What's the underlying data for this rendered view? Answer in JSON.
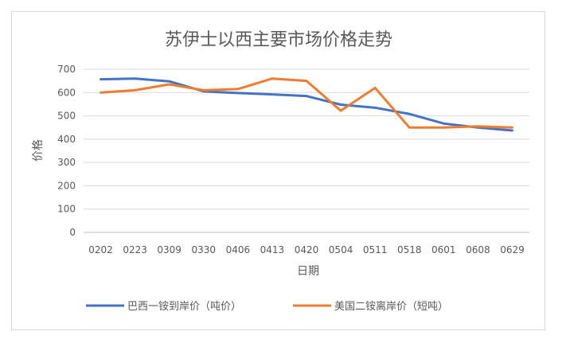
{
  "chart_data": {
    "type": "line",
    "title": "苏伊士以西主要市场价格走势",
    "xlabel": "日期",
    "ylabel": "价格",
    "ylim": [
      0,
      700
    ],
    "yticks": [
      0,
      100,
      200,
      300,
      400,
      500,
      600,
      700
    ],
    "categories": [
      "0202",
      "0223",
      "0309",
      "0330",
      "0406",
      "0413",
      "0420",
      "0504",
      "0511",
      "0518",
      "0601",
      "0608",
      "0629"
    ],
    "grid": true,
    "legend_position": "bottom",
    "series": [
      {
        "name": "巴西一铵到岸价（吨价）",
        "color": "#4472c4",
        "values": [
          657,
          660,
          648,
          605,
          598,
          592,
          585,
          548,
          535,
          508,
          467,
          450,
          437
        ]
      },
      {
        "name": "美国二铵离岸价（短吨）",
        "color": "#ed7d31",
        "values": [
          600,
          610,
          635,
          610,
          615,
          660,
          650,
          522,
          620,
          450,
          450,
          455,
          450
        ]
      }
    ]
  }
}
